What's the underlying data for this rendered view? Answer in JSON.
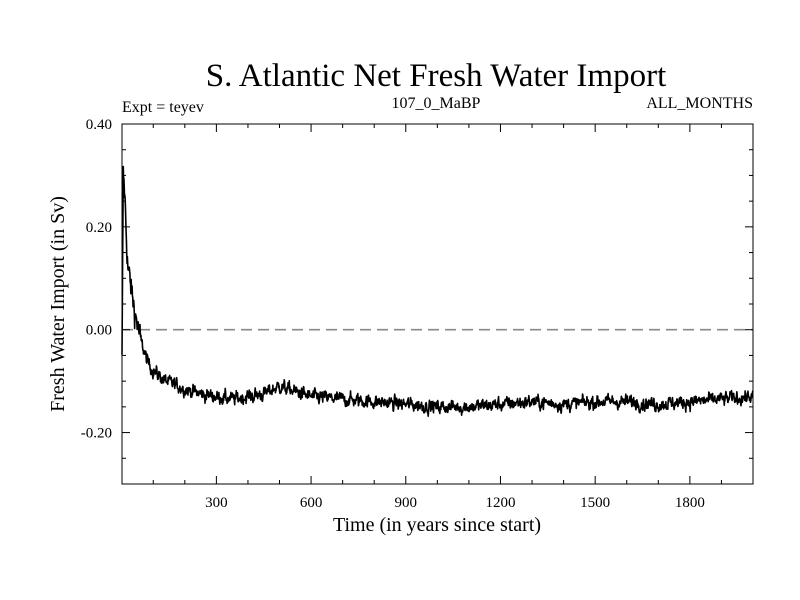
{
  "chart_data": {
    "type": "line",
    "title": "S. Atlantic Net Fresh Water Import",
    "subtitle_left": "Expt = teyev",
    "subtitle_center": "107_0_MaBP",
    "subtitle_right": "ALL_MONTHS",
    "xlabel": "Time (in years since start)",
    "ylabel": "Fresh Water Import (in Sv)",
    "xlim": [
      1,
      2000
    ],
    "ylim": [
      -0.3,
      0.4
    ],
    "x_ticks": [
      300,
      600,
      900,
      1200,
      1500,
      1800
    ],
    "x_tick_labels": [
      "300",
      "600",
      "900",
      "1200",
      "1500",
      "1800"
    ],
    "y_ticks": [
      -0.2,
      0.0,
      0.2,
      0.4
    ],
    "y_tick_labels": [
      "-0.20",
      "0.00",
      "0.20",
      "0.40"
    ],
    "reference_line": {
      "y": 0.0,
      "style": "dashed",
      "color": "#888888"
    },
    "series": [
      {
        "name": "Net fresh water import",
        "color": "#000000",
        "x": [
          1,
          5,
          10,
          15,
          20,
          25,
          30,
          40,
          50,
          60,
          70,
          80,
          90,
          100,
          120,
          140,
          160,
          180,
          200,
          250,
          300,
          350,
          400,
          450,
          500,
          550,
          600,
          700,
          800,
          900,
          1000,
          1100,
          1200,
          1300,
          1400,
          1500,
          1600,
          1700,
          1800,
          1900,
          2000
        ],
        "values": [
          -0.06,
          0.3,
          0.26,
          0.18,
          0.12,
          0.1,
          0.08,
          0.04,
          0.01,
          -0.02,
          -0.04,
          -0.06,
          -0.07,
          -0.08,
          -0.09,
          -0.1,
          -0.105,
          -0.11,
          -0.115,
          -0.125,
          -0.13,
          -0.135,
          -0.13,
          -0.125,
          -0.11,
          -0.12,
          -0.13,
          -0.135,
          -0.14,
          -0.145,
          -0.15,
          -0.15,
          -0.145,
          -0.14,
          -0.145,
          -0.14,
          -0.14,
          -0.145,
          -0.14,
          -0.135,
          -0.13
        ]
      }
    ]
  }
}
